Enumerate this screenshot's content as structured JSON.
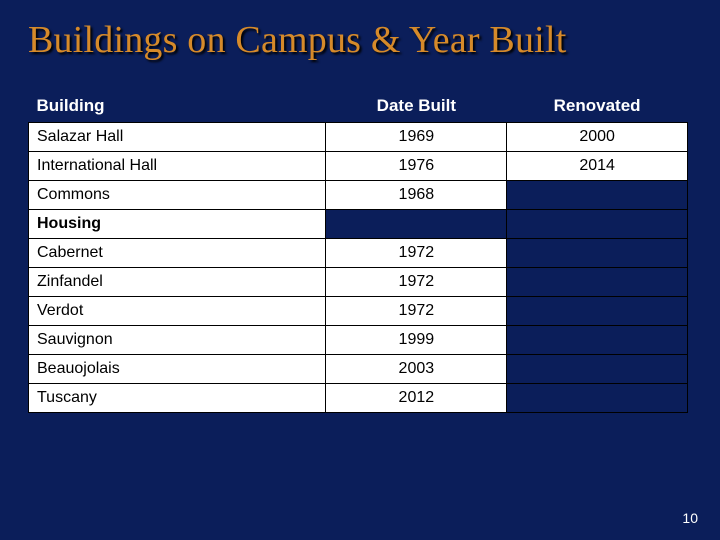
{
  "slide": {
    "title": "Buildings on Campus & Year Built",
    "page_number": "10",
    "background_color": "#0b1e5a",
    "title_color": "#d68a2a",
    "title_fontsize_pt": 28,
    "title_font_family": "Times New Roman"
  },
  "table": {
    "columns": {
      "building": "Building",
      "date_built": "Date Built",
      "renovated": "Renovated"
    },
    "column_widths_pct": [
      46,
      27,
      27
    ],
    "header_bg": "#0b1e5a",
    "header_text_color": "#ffffff",
    "cell_bg": "#ffffff",
    "cell_text_color": "#000000",
    "empty_reno_bg": "#0b1e5a",
    "border_color": "#000000",
    "font_size_pt": 12,
    "rows": [
      {
        "building": "Salazar Hall",
        "date_built": "1969",
        "renovated": "2000",
        "reno_fill": true
      },
      {
        "building": "International Hall",
        "date_built": "1976",
        "renovated": "2014",
        "reno_fill": true
      },
      {
        "building": "Commons",
        "date_built": "1968",
        "renovated": "",
        "reno_fill": false
      },
      {
        "building": "Housing",
        "date_built": "",
        "renovated": "",
        "reno_fill": false,
        "section": true
      },
      {
        "building": "Cabernet",
        "date_built": "1972",
        "renovated": "",
        "reno_fill": false
      },
      {
        "building": "Zinfandel",
        "date_built": "1972",
        "renovated": "",
        "reno_fill": false
      },
      {
        "building": "Verdot",
        "date_built": "1972",
        "renovated": "",
        "reno_fill": false
      },
      {
        "building": "Sauvignon",
        "date_built": "1999",
        "renovated": "",
        "reno_fill": false
      },
      {
        "building": "Beauojolais",
        "date_built": "2003",
        "renovated": "",
        "reno_fill": false
      },
      {
        "building": "Tuscany",
        "date_built": "2012",
        "renovated": "",
        "reno_fill": false
      }
    ]
  }
}
